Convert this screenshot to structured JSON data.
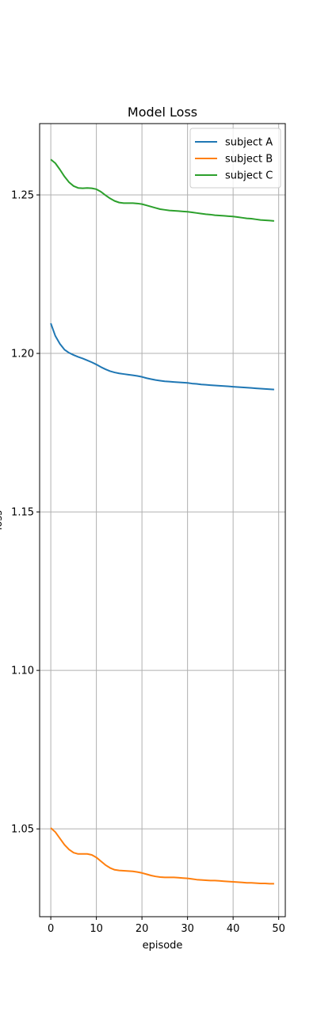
{
  "chart_data": {
    "type": "line",
    "title": "Model Loss",
    "xlabel": "episode",
    "ylabel": "loss",
    "xlim": [
      -2.45,
      51.45
    ],
    "ylim": [
      1.0223,
      1.2725
    ],
    "xticks": [
      0,
      10,
      20,
      30,
      40,
      50
    ],
    "yticks": [
      1.05,
      1.1,
      1.15,
      1.2,
      1.25
    ],
    "xtick_labels": [
      "0",
      "10",
      "20",
      "30",
      "40",
      "50"
    ],
    "ytick_labels": [
      "1.05",
      "1.10",
      "1.15",
      "1.20",
      "1.25"
    ],
    "grid": true,
    "legend_position": "top-right",
    "x": [
      0,
      1,
      2,
      3,
      4,
      5,
      6,
      7,
      8,
      9,
      10,
      11,
      12,
      13,
      14,
      15,
      16,
      17,
      18,
      19,
      20,
      21,
      22,
      23,
      24,
      25,
      26,
      27,
      28,
      29,
      30,
      31,
      32,
      33,
      34,
      35,
      36,
      37,
      38,
      39,
      40,
      41,
      42,
      43,
      44,
      45,
      46,
      47,
      48,
      49
    ],
    "series": [
      {
        "name": "subject A",
        "color": "#1f77b4",
        "values": [
          1.2095,
          1.2055,
          1.203,
          1.2012,
          1.2002,
          1.1995,
          1.1989,
          1.1984,
          1.1978,
          1.1972,
          1.1965,
          1.1957,
          1.195,
          1.1944,
          1.194,
          1.1937,
          1.1935,
          1.1933,
          1.1931,
          1.1929,
          1.1926,
          1.1922,
          1.1919,
          1.1916,
          1.1914,
          1.1912,
          1.1911,
          1.191,
          1.1909,
          1.1908,
          1.1907,
          1.1905,
          1.1904,
          1.1902,
          1.1901,
          1.19,
          1.1899,
          1.1898,
          1.1897,
          1.1896,
          1.1895,
          1.1894,
          1.1893,
          1.1892,
          1.1891,
          1.189,
          1.1889,
          1.1888,
          1.1887,
          1.1886
        ]
      },
      {
        "name": "subject B",
        "color": "#ff7f0e",
        "values": [
          1.0503,
          1.049,
          1.047,
          1.045,
          1.0435,
          1.0425,
          1.0421,
          1.0421,
          1.0421,
          1.0418,
          1.041,
          1.0398,
          1.0386,
          1.0377,
          1.0371,
          1.0369,
          1.0368,
          1.0367,
          1.0366,
          1.0364,
          1.0361,
          1.0357,
          1.0353,
          1.035,
          1.0348,
          1.0347,
          1.0347,
          1.0347,
          1.0346,
          1.0345,
          1.0344,
          1.0342,
          1.034,
          1.0339,
          1.0338,
          1.0337,
          1.0337,
          1.0336,
          1.0335,
          1.0334,
          1.0333,
          1.0332,
          1.0331,
          1.033,
          1.033,
          1.0329,
          1.0328,
          1.0328,
          1.0327,
          1.0327
        ]
      },
      {
        "name": "subject C",
        "color": "#2ca02c",
        "values": [
          1.2612,
          1.26,
          1.258,
          1.2558,
          1.254,
          1.2528,
          1.2522,
          1.2521,
          1.2522,
          1.2521,
          1.2518,
          1.251,
          1.2499,
          1.2489,
          1.2481,
          1.2476,
          1.2474,
          1.2474,
          1.2474,
          1.2473,
          1.2471,
          1.2467,
          1.2463,
          1.2459,
          1.2455,
          1.2453,
          1.2451,
          1.245,
          1.2449,
          1.2448,
          1.2447,
          1.2445,
          1.2443,
          1.2441,
          1.2439,
          1.2438,
          1.2436,
          1.2435,
          1.2434,
          1.2433,
          1.2432,
          1.243,
          1.2428,
          1.2426,
          1.2425,
          1.2423,
          1.2421,
          1.242,
          1.2419,
          1.2418
        ]
      }
    ]
  }
}
